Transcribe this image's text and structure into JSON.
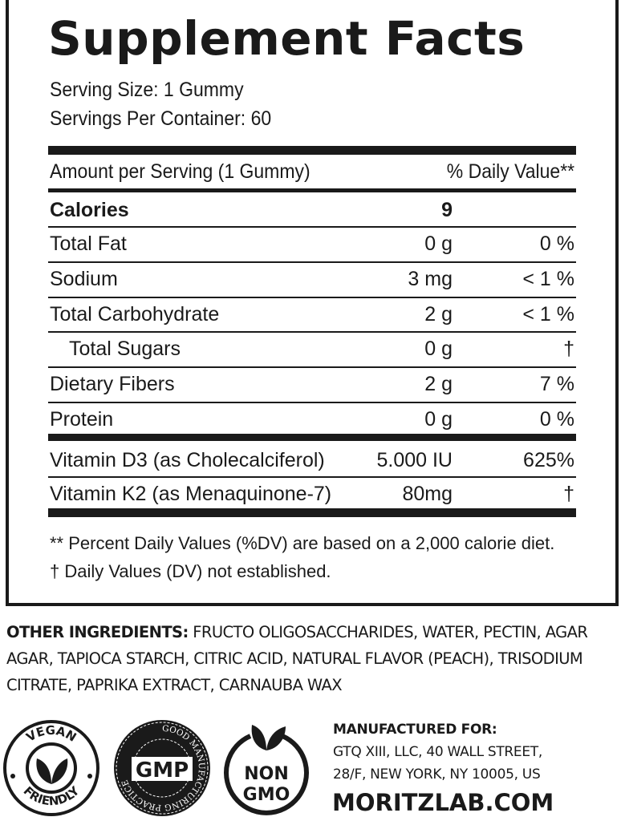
{
  "title": "Supplement Facts",
  "serving_size": "Serving Size: 1 Gummy",
  "servings_per_container": "Servings Per Container: 60",
  "header": {
    "amount": "Amount per Serving (1 Gummy)",
    "dv": "% Daily Value**"
  },
  "calories": {
    "label": "Calories",
    "amount": "9"
  },
  "rows": [
    {
      "label": "Total Fat",
      "amount": "0 g",
      "dv": "0 %"
    },
    {
      "label": "Sodium",
      "amount": "3 mg",
      "dv": "< 1 %"
    },
    {
      "label": "Total Carbohydrate",
      "amount": "2 g",
      "dv": "< 1 %"
    },
    {
      "label": "Total Sugars",
      "amount": "0 g",
      "dv": "†"
    },
    {
      "label": "Dietary Fibers",
      "amount": "2 g",
      "dv": "7 %"
    },
    {
      "label": "Protein",
      "amount": "0 g",
      "dv": "0 %"
    }
  ],
  "vitamins": [
    {
      "label": "Vitamin D3 (as Cholecalciferol)",
      "amount": "5.000 IU",
      "dv": "625%"
    },
    {
      "label": "Vitamin K2 (as Menaquinone-7)",
      "amount": "80mg",
      "dv": "†"
    }
  ],
  "footnotes": [
    "** Percent Daily Values (%DV) are based on a 2,000 calorie diet.",
    "† Daily Values (DV) not established."
  ],
  "ingredients": {
    "label": "OTHER INGREDIENTS:",
    "text": "FRUCTO OLIGOSACCHARIDES, WATER, PECTIN, AGAR AGAR, TAPIOCA STARCH, CITRIC ACID, NATURAL FLAVOR (PEACH), TRISODIUM CITRATE, PAPRIKA EXTRACT, CARNAUBA WAX"
  },
  "badges": {
    "vegan": [
      "VEGAN",
      "FRIENDLY"
    ],
    "gmp": [
      "GMP",
      "GOOD MANUFACTURING PRACTICE"
    ],
    "non_gmo": [
      "NON",
      "GMO"
    ]
  },
  "manufacturer": {
    "heading": "MANUFACTURED FOR:",
    "lines": [
      "GTQ XIII, LLC, 40 WALL STREET,",
      "28/F, NEW YORK, NY 10005, US"
    ],
    "website": "MORITZLAB.COM"
  }
}
